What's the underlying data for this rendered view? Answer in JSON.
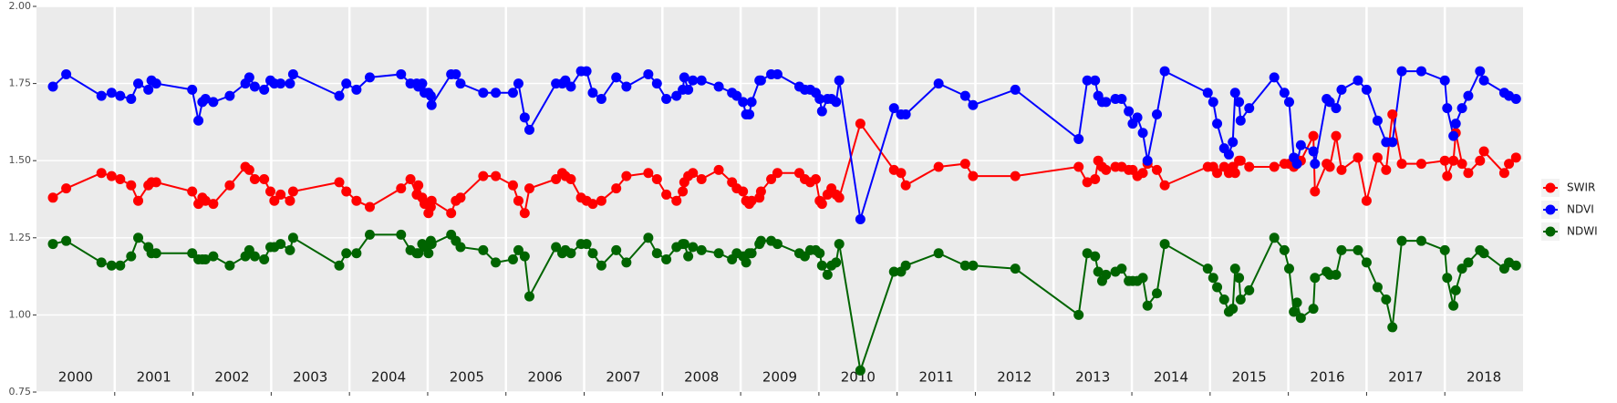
{
  "chart_data": {
    "type": "line",
    "legend": "right",
    "grid": true,
    "markers": true,
    "xlim": [
      2000,
      2019
    ],
    "xticks": [
      2001,
      2002,
      2003,
      2004,
      2005,
      2006,
      2007,
      2008,
      2009,
      2010,
      2011,
      2012,
      2013,
      2014,
      2015,
      2016,
      2017,
      2018
    ],
    "ylim": [
      0.75,
      2
    ],
    "yticks": [
      {
        "value": 0.75,
        "label": "0.75"
      },
      {
        "value": 1,
        "label": "1.00"
      },
      {
        "value": 1.25,
        "label": "1.25"
      },
      {
        "value": 1.5,
        "label": "1.50"
      },
      {
        "value": 1.75,
        "label": "1.75"
      },
      {
        "value": 2,
        "label": "2.00"
      }
    ],
    "year_labels": [
      "2000",
      "2001",
      "2002",
      "2003",
      "2004",
      "2005",
      "2006",
      "2007",
      "2008",
      "2009",
      "2010",
      "2011",
      "2012",
      "2013",
      "2014",
      "2015",
      "2016",
      "2017",
      "2018"
    ],
    "x": [
      2000.21,
      2000.38,
      2000.83,
      2000.96,
      2001.07,
      2001.21,
      2001.3,
      2001.43,
      2001.47,
      2001.53,
      2001.99,
      2002.07,
      2002.12,
      2002.16,
      2002.26,
      2002.47,
      2002.67,
      2002.72,
      2002.79,
      2002.91,
      2002.99,
      2003.04,
      2003.12,
      2003.24,
      2003.28,
      2003.87,
      2003.96,
      2004.09,
      2004.26,
      2004.66,
      2004.78,
      2004.86,
      2004.88,
      2004.93,
      2004.96,
      2005.01,
      2005.04,
      2005.05,
      2005.3,
      2005.36,
      2005.42,
      2005.71,
      2005.87,
      2006.09,
      2006.16,
      2006.24,
      2006.3,
      2006.64,
      2006.72,
      2006.76,
      2006.83,
      2006.96,
      2007.03,
      2007.11,
      2007.22,
      2007.41,
      2007.54,
      2007.82,
      2007.93,
      2008.05,
      2008.18,
      2008.26,
      2008.28,
      2008.33,
      2008.39,
      2008.5,
      2008.72,
      2008.89,
      2008.95,
      2009.03,
      2009.07,
      2009.11,
      2009.14,
      2009.24,
      2009.26,
      2009.39,
      2009.47,
      2009.75,
      2009.82,
      2009.89,
      2009.96,
      2010.01,
      2010.04,
      2010.11,
      2010.16,
      2010.22,
      2010.26,
      2010.53,
      2010.96,
      2011.05,
      2011.11,
      2011.53,
      2011.87,
      2011.97,
      2012.51,
      2013.32,
      2013.43,
      2013.53,
      2013.57,
      2013.62,
      2013.67,
      2013.79,
      2013.87,
      2013.96,
      2014.01,
      2014.07,
      2014.14,
      2014.2,
      2014.32,
      2014.42,
      2014.97,
      2015.04,
      2015.09,
      2015.18,
      2015.24,
      2015.29,
      2015.32,
      2015.37,
      2015.39,
      2015.5,
      2015.82,
      2015.95,
      2016.01,
      2016.07,
      2016.11,
      2016.16,
      2016.32,
      2016.34,
      2016.49,
      2016.53,
      2016.61,
      2016.68,
      2016.89,
      2017.0,
      2017.14,
      2017.25,
      2017.33,
      2017.45,
      2017.7,
      2018.0,
      2018.03,
      2018.11,
      2018.14,
      2018.22,
      2018.3,
      2018.45,
      2018.5,
      2018.76,
      2018.82,
      2018.91
    ],
    "series": [
      {
        "name": "SWIR",
        "color": "#ff0000",
        "values": [
          1.38,
          1.41,
          1.46,
          1.45,
          1.44,
          1.42,
          1.37,
          1.42,
          1.43,
          1.43,
          1.4,
          1.36,
          1.38,
          1.37,
          1.36,
          1.42,
          1.48,
          1.47,
          1.44,
          1.44,
          1.4,
          1.37,
          1.39,
          1.37,
          1.4,
          1.43,
          1.4,
          1.37,
          1.35,
          1.41,
          1.44,
          1.39,
          1.42,
          1.38,
          1.36,
          1.33,
          1.35,
          1.37,
          1.33,
          1.37,
          1.38,
          1.45,
          1.45,
          1.42,
          1.37,
          1.33,
          1.41,
          1.44,
          1.46,
          1.45,
          1.44,
          1.38,
          1.37,
          1.36,
          1.37,
          1.41,
          1.45,
          1.46,
          1.44,
          1.39,
          1.37,
          1.4,
          1.43,
          1.45,
          1.46,
          1.44,
          1.47,
          1.43,
          1.41,
          1.4,
          1.37,
          1.36,
          1.37,
          1.38,
          1.4,
          1.44,
          1.46,
          1.46,
          1.44,
          1.43,
          1.44,
          1.37,
          1.36,
          1.39,
          1.41,
          1.39,
          1.38,
          1.62,
          1.47,
          1.46,
          1.42,
          1.48,
          1.49,
          1.45,
          1.45,
          1.48,
          1.43,
          1.44,
          1.5,
          1.48,
          1.47,
          1.48,
          1.48,
          1.47,
          1.47,
          1.45,
          1.46,
          1.49,
          1.47,
          1.42,
          1.48,
          1.48,
          1.46,
          1.48,
          1.46,
          1.48,
          1.46,
          1.5,
          1.5,
          1.48,
          1.48,
          1.49,
          1.49,
          1.48,
          1.49,
          1.5,
          1.58,
          1.4,
          1.49,
          1.48,
          1.58,
          1.47,
          1.51,
          1.37,
          1.51,
          1.47,
          1.65,
          1.49,
          1.49,
          1.5,
          1.45,
          1.5,
          1.59,
          1.49,
          1.46,
          1.5,
          1.53,
          1.46,
          1.49,
          1.51
        ]
      },
      {
        "name": "NDVI",
        "color": "#0000ff",
        "values": [
          1.74,
          1.78,
          1.71,
          1.72,
          1.71,
          1.7,
          1.75,
          1.73,
          1.76,
          1.75,
          1.73,
          1.63,
          1.69,
          1.7,
          1.69,
          1.71,
          1.75,
          1.77,
          1.74,
          1.73,
          1.76,
          1.75,
          1.75,
          1.75,
          1.78,
          1.71,
          1.75,
          1.73,
          1.77,
          1.78,
          1.75,
          1.75,
          1.74,
          1.75,
          1.72,
          1.72,
          1.71,
          1.68,
          1.78,
          1.78,
          1.75,
          1.72,
          1.72,
          1.72,
          1.75,
          1.64,
          1.6,
          1.75,
          1.75,
          1.76,
          1.74,
          1.79,
          1.79,
          1.72,
          1.7,
          1.77,
          1.74,
          1.78,
          1.75,
          1.7,
          1.71,
          1.73,
          1.77,
          1.73,
          1.76,
          1.76,
          1.74,
          1.72,
          1.71,
          1.69,
          1.65,
          1.65,
          1.69,
          1.76,
          1.76,
          1.78,
          1.78,
          1.74,
          1.73,
          1.73,
          1.72,
          1.7,
          1.66,
          1.7,
          1.7,
          1.69,
          1.76,
          1.31,
          1.67,
          1.65,
          1.65,
          1.75,
          1.71,
          1.68,
          1.73,
          1.57,
          1.76,
          1.76,
          1.71,
          1.69,
          1.69,
          1.7,
          1.7,
          1.66,
          1.62,
          1.64,
          1.59,
          1.5,
          1.65,
          1.79,
          1.72,
          1.69,
          1.62,
          1.54,
          1.52,
          1.56,
          1.72,
          1.69,
          1.63,
          1.67,
          1.77,
          1.72,
          1.69,
          1.51,
          1.49,
          1.55,
          1.53,
          1.49,
          1.7,
          1.69,
          1.67,
          1.73,
          1.76,
          1.73,
          1.63,
          1.56,
          1.56,
          1.79,
          1.79,
          1.76,
          1.67,
          1.58,
          1.62,
          1.67,
          1.71,
          1.79,
          1.76,
          1.72,
          1.71,
          1.7
        ]
      },
      {
        "name": "NDWI",
        "color": "#006400",
        "values": [
          1.23,
          1.24,
          1.17,
          1.16,
          1.16,
          1.19,
          1.25,
          1.22,
          1.2,
          1.2,
          1.2,
          1.18,
          1.18,
          1.18,
          1.19,
          1.16,
          1.19,
          1.21,
          1.19,
          1.18,
          1.22,
          1.22,
          1.23,
          1.21,
          1.25,
          1.16,
          1.2,
          1.2,
          1.26,
          1.26,
          1.21,
          1.2,
          1.2,
          1.23,
          1.22,
          1.2,
          1.24,
          1.23,
          1.26,
          1.24,
          1.22,
          1.21,
          1.17,
          1.18,
          1.21,
          1.19,
          1.06,
          1.22,
          1.2,
          1.21,
          1.2,
          1.23,
          1.23,
          1.2,
          1.16,
          1.21,
          1.17,
          1.25,
          1.2,
          1.18,
          1.22,
          1.23,
          1.23,
          1.19,
          1.22,
          1.21,
          1.2,
          1.18,
          1.2,
          1.19,
          1.17,
          1.2,
          1.2,
          1.23,
          1.24,
          1.24,
          1.23,
          1.2,
          1.19,
          1.21,
          1.21,
          1.2,
          1.16,
          1.13,
          1.16,
          1.17,
          1.23,
          0.82,
          1.14,
          1.14,
          1.16,
          1.2,
          1.16,
          1.16,
          1.15,
          1.0,
          1.2,
          1.19,
          1.14,
          1.11,
          1.13,
          1.14,
          1.15,
          1.11,
          1.11,
          1.11,
          1.12,
          1.03,
          1.07,
          1.23,
          1.15,
          1.12,
          1.09,
          1.05,
          1.01,
          1.02,
          1.15,
          1.12,
          1.05,
          1.08,
          1.25,
          1.21,
          1.15,
          1.01,
          1.04,
          0.99,
          1.02,
          1.12,
          1.14,
          1.13,
          1.13,
          1.21,
          1.21,
          1.17,
          1.09,
          1.05,
          0.96,
          1.24,
          1.24,
          1.21,
          1.12,
          1.03,
          1.08,
          1.15,
          1.17,
          1.21,
          1.2,
          1.15,
          1.17,
          1.16
        ]
      }
    ]
  }
}
